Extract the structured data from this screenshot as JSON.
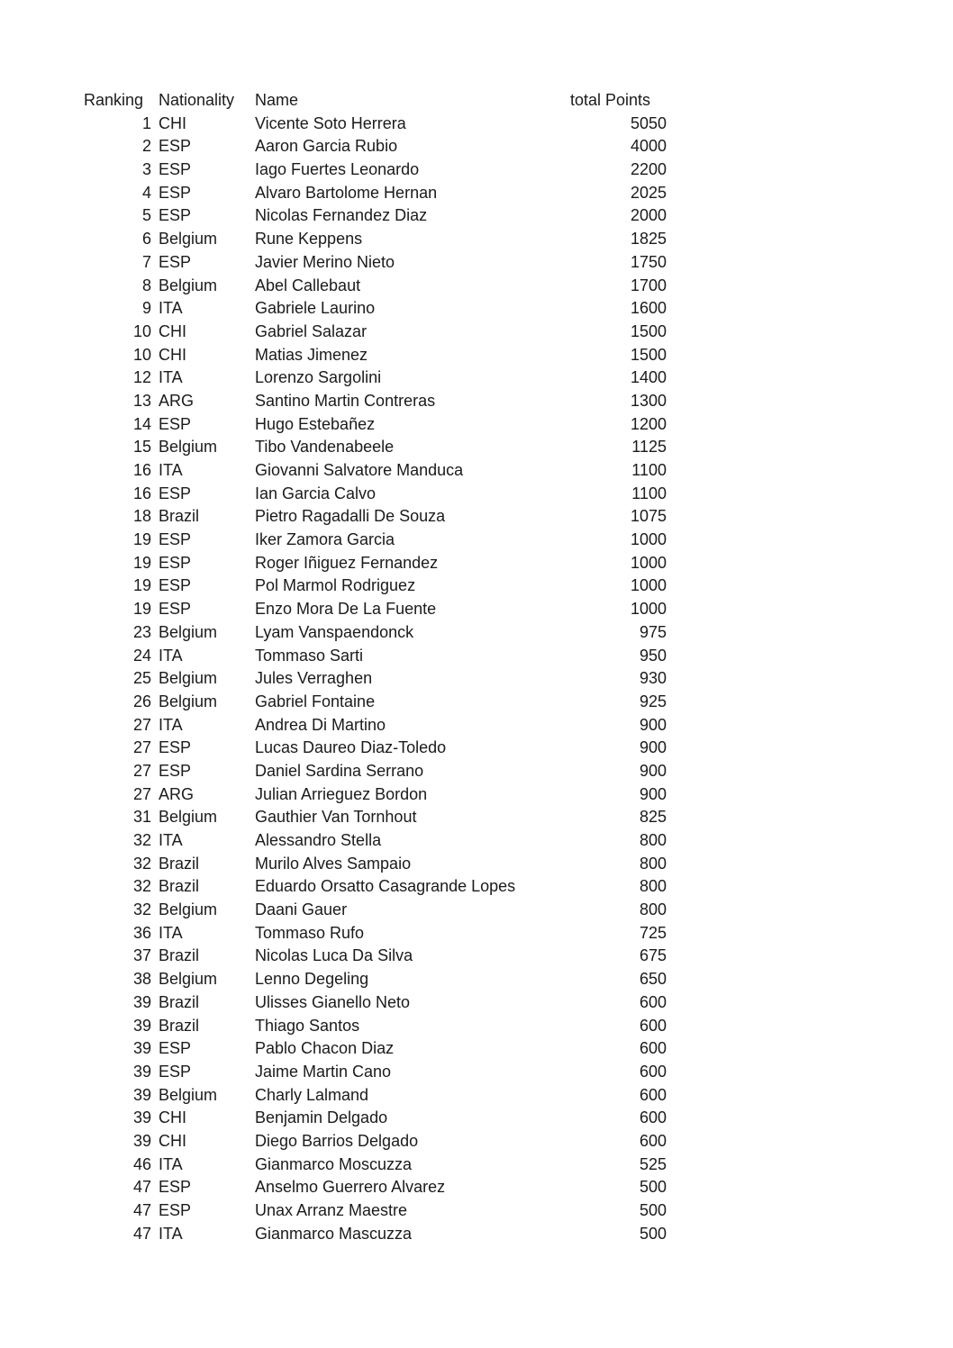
{
  "page": {
    "background_color": "#ffffff",
    "text_color": "#1b1b1b"
  },
  "table": {
    "headers": {
      "ranking": "Ranking",
      "nationality": "Nationality",
      "name": "Name",
      "points": "total Points"
    },
    "rows": [
      {
        "ranking": "1",
        "nationality": "CHI",
        "name": "Vicente Soto Herrera",
        "points": "5050"
      },
      {
        "ranking": "2",
        "nationality": "ESP",
        "name": "Aaron Garcia Rubio",
        "points": "4000"
      },
      {
        "ranking": "3",
        "nationality": "ESP",
        "name": "Iago Fuertes Leonardo",
        "points": "2200"
      },
      {
        "ranking": "4",
        "nationality": "ESP",
        "name": "Alvaro Bartolome Hernan",
        "points": "2025"
      },
      {
        "ranking": "5",
        "nationality": "ESP",
        "name": "Nicolas Fernandez Diaz",
        "points": "2000"
      },
      {
        "ranking": "6",
        "nationality": "Belgium",
        "name": "Rune Keppens",
        "points": "1825"
      },
      {
        "ranking": "7",
        "nationality": "ESP",
        "name": "Javier Merino Nieto",
        "points": "1750"
      },
      {
        "ranking": "8",
        "nationality": "Belgium",
        "name": "Abel Callebaut",
        "points": "1700"
      },
      {
        "ranking": "9",
        "nationality": "ITA",
        "name": "Gabriele Laurino",
        "points": "1600"
      },
      {
        "ranking": "10",
        "nationality": "CHI",
        "name": "Gabriel Salazar",
        "points": "1500"
      },
      {
        "ranking": "10",
        "nationality": "CHI",
        "name": "Matias Jimenez",
        "points": "1500"
      },
      {
        "ranking": "12",
        "nationality": "ITA",
        "name": "Lorenzo Sargolini",
        "points": "1400"
      },
      {
        "ranking": "13",
        "nationality": "ARG",
        "name": "Santino Martin Contreras",
        "points": "1300"
      },
      {
        "ranking": "14",
        "nationality": "ESP",
        "name": "Hugo Estebañez",
        "points": "1200"
      },
      {
        "ranking": "15",
        "nationality": "Belgium",
        "name": "Tibo Vandenabeele",
        "points": "1125"
      },
      {
        "ranking": "16",
        "nationality": "ITA",
        "name": "Giovanni Salvatore Manduca",
        "points": "1100"
      },
      {
        "ranking": "16",
        "nationality": "ESP",
        "name": "Ian Garcia Calvo",
        "points": "1100"
      },
      {
        "ranking": "18",
        "nationality": "Brazil",
        "name": "Pietro Ragadalli De Souza",
        "points": "1075"
      },
      {
        "ranking": "19",
        "nationality": "ESP",
        "name": "Iker Zamora Garcia",
        "points": "1000"
      },
      {
        "ranking": "19",
        "nationality": "ESP",
        "name": "Roger Iñiguez Fernandez",
        "points": "1000"
      },
      {
        "ranking": "19",
        "nationality": "ESP",
        "name": "Pol Marmol Rodriguez",
        "points": "1000"
      },
      {
        "ranking": "19",
        "nationality": "ESP",
        "name": "Enzo Mora De La Fuente",
        "points": "1000"
      },
      {
        "ranking": "23",
        "nationality": "Belgium",
        "name": "Lyam Vanspaendonck",
        "points": "975"
      },
      {
        "ranking": "24",
        "nationality": "ITA",
        "name": "Tommaso Sarti",
        "points": "950"
      },
      {
        "ranking": "25",
        "nationality": "Belgium",
        "name": "Jules Verraghen",
        "points": "930"
      },
      {
        "ranking": "26",
        "nationality": "Belgium",
        "name": "Gabriel Fontaine",
        "points": "925"
      },
      {
        "ranking": "27",
        "nationality": "ITA",
        "name": "Andrea Di Martino",
        "points": "900"
      },
      {
        "ranking": "27",
        "nationality": "ESP",
        "name": "Lucas Daureo Diaz-Toledo",
        "points": "900"
      },
      {
        "ranking": "27",
        "nationality": "ESP",
        "name": "Daniel Sardina Serrano",
        "points": "900"
      },
      {
        "ranking": "27",
        "nationality": "ARG",
        "name": "Julian Arrieguez Bordon",
        "points": "900"
      },
      {
        "ranking": "31",
        "nationality": "Belgium",
        "name": "Gauthier Van Tornhout",
        "points": "825"
      },
      {
        "ranking": "32",
        "nationality": "ITA",
        "name": "Alessandro Stella",
        "points": "800"
      },
      {
        "ranking": "32",
        "nationality": "Brazil",
        "name": "Murilo Alves Sampaio",
        "points": "800"
      },
      {
        "ranking": "32",
        "nationality": "Brazil",
        "name": "Eduardo Orsatto Casagrande Lopes",
        "points": "800"
      },
      {
        "ranking": "32",
        "nationality": "Belgium",
        "name": "Daani Gauer",
        "points": "800"
      },
      {
        "ranking": "36",
        "nationality": "ITA",
        "name": "Tommaso Rufo",
        "points": "725"
      },
      {
        "ranking": "37",
        "nationality": "Brazil",
        "name": "Nicolas Luca Da Silva",
        "points": "675"
      },
      {
        "ranking": "38",
        "nationality": "Belgium",
        "name": "Lenno Degeling",
        "points": "650"
      },
      {
        "ranking": "39",
        "nationality": "Brazil",
        "name": "Ulisses Gianello Neto",
        "points": "600"
      },
      {
        "ranking": "39",
        "nationality": "Brazil",
        "name": "Thiago Santos",
        "points": "600"
      },
      {
        "ranking": "39",
        "nationality": "ESP",
        "name": "Pablo Chacon Diaz",
        "points": "600"
      },
      {
        "ranking": "39",
        "nationality": "ESP",
        "name": "Jaime Martin Cano",
        "points": "600"
      },
      {
        "ranking": "39",
        "nationality": "Belgium",
        "name": "Charly Lalmand",
        "points": "600"
      },
      {
        "ranking": "39",
        "nationality": "CHI",
        "name": "Benjamin Delgado",
        "points": "600"
      },
      {
        "ranking": "39",
        "nationality": "CHI",
        "name": "Diego Barrios Delgado",
        "points": "600"
      },
      {
        "ranking": "46",
        "nationality": "ITA",
        "name": "Gianmarco Moscuzza",
        "points": "525"
      },
      {
        "ranking": "47",
        "nationality": "ESP",
        "name": "Anselmo Guerrero Alvarez",
        "points": "500"
      },
      {
        "ranking": "47",
        "nationality": "ESP",
        "name": "Unax Arranz Maestre",
        "points": "500"
      },
      {
        "ranking": "47",
        "nationality": "ITA",
        "name": "Gianmarco Mascuzza",
        "points": "500"
      }
    ]
  }
}
